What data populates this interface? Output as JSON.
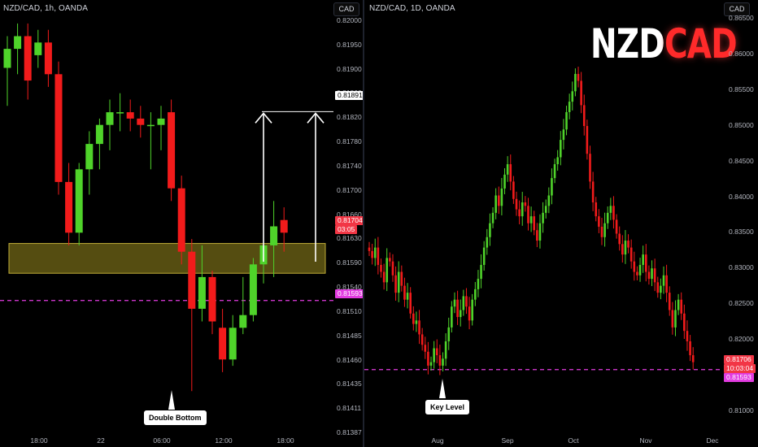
{
  "brand": {
    "part1": "NZD",
    "part2": "CAD"
  },
  "colors": {
    "up": "#4fd32a",
    "down": "#f21b1b",
    "zone_fill": "#5a5212",
    "zone_border": "#c9b53a",
    "level_line": "#e23be0",
    "price_tag_current": "#f23645",
    "price_tag_level": "#e23be0"
  },
  "left": {
    "symbol": "NZD/CAD, 1h, OANDA",
    "currency": "CAD",
    "price_ticks": [
      "0.82000",
      "0.81950",
      "0.81900",
      "0.81860",
      "0.81820",
      "0.81780",
      "0.81740",
      "0.81700",
      "0.81660",
      "0.81630",
      "0.81590",
      "0.81540",
      "0.81510",
      "0.81485",
      "0.81460",
      "0.81435",
      "0.81411",
      "0.81387"
    ],
    "time_ticks": [
      "18:00",
      "22",
      "06:00",
      "12:00",
      "18:00"
    ],
    "tag_target": "0.81891",
    "tag_current_price": "0.81704",
    "tag_current_time": "03:05",
    "tag_level": "0.81593",
    "callout": "Double Bottom"
  },
  "right": {
    "symbol": "NZD/CAD, 1D, OANDA",
    "currency": "CAD",
    "price_ticks": [
      "0.86500",
      "0.86000",
      "0.85500",
      "0.85000",
      "0.84500",
      "0.84000",
      "0.83500",
      "0.83000",
      "0.82500",
      "0.82000",
      "0.81500",
      "0.81000"
    ],
    "time_ticks": [
      "Aug",
      "Sep",
      "Oct",
      "Nov",
      "Dec"
    ],
    "tag_current_price": "0.81706",
    "tag_current_time": "10:03:04",
    "tag_level": "0.81593",
    "callout": "Key Level"
  },
  "chart_data": [
    {
      "type": "candlestick",
      "title": "NZD/CAD, 1h, OANDA",
      "ylim": [
        0.8138,
        0.8204
      ],
      "x_ticks": [
        "18:00",
        "22",
        "06:00",
        "12:00",
        "18:00"
      ],
      "annotations": [
        "Double Bottom",
        "demand zone 0.81640-0.81680",
        "level 0.81593",
        "target 0.81891"
      ],
      "candles": [
        {
          "o": 0.8196,
          "h": 0.8201,
          "l": 0.819,
          "c": 0.8199
        },
        {
          "o": 0.8199,
          "h": 0.8203,
          "l": 0.8195,
          "c": 0.8201
        },
        {
          "o": 0.8201,
          "h": 0.8203,
          "l": 0.8191,
          "c": 0.8194
        },
        {
          "o": 0.8198,
          "h": 0.8202,
          "l": 0.8196,
          "c": 0.82
        },
        {
          "o": 0.82,
          "h": 0.8202,
          "l": 0.8193,
          "c": 0.8195
        },
        {
          "o": 0.8195,
          "h": 0.8197,
          "l": 0.8176,
          "c": 0.8178
        },
        {
          "o": 0.8178,
          "h": 0.8181,
          "l": 0.8168,
          "c": 0.817
        },
        {
          "o": 0.817,
          "h": 0.8181,
          "l": 0.8168,
          "c": 0.818
        },
        {
          "o": 0.818,
          "h": 0.8186,
          "l": 0.8176,
          "c": 0.8184
        },
        {
          "o": 0.8184,
          "h": 0.8188,
          "l": 0.818,
          "c": 0.8187
        },
        {
          "o": 0.8187,
          "h": 0.8191,
          "l": 0.8183,
          "c": 0.8189
        },
        {
          "o": 0.8189,
          "h": 0.8192,
          "l": 0.8186,
          "c": 0.8189
        },
        {
          "o": 0.8189,
          "h": 0.8191,
          "l": 0.8186,
          "c": 0.8188
        },
        {
          "o": 0.8188,
          "h": 0.819,
          "l": 0.8185,
          "c": 0.8187
        },
        {
          "o": 0.8187,
          "h": 0.8189,
          "l": 0.818,
          "c": 0.8187
        },
        {
          "o": 0.8187,
          "h": 0.819,
          "l": 0.8183,
          "c": 0.8188
        },
        {
          "o": 0.8189,
          "h": 0.8191,
          "l": 0.8175,
          "c": 0.8177
        },
        {
          "o": 0.8177,
          "h": 0.8179,
          "l": 0.8165,
          "c": 0.8167
        },
        {
          "o": 0.8167,
          "h": 0.8169,
          "l": 0.8145,
          "c": 0.8158
        },
        {
          "o": 0.8158,
          "h": 0.8168,
          "l": 0.8156,
          "c": 0.8163
        },
        {
          "o": 0.8163,
          "h": 0.8164,
          "l": 0.8154,
          "c": 0.8156
        },
        {
          "o": 0.8155,
          "h": 0.8158,
          "l": 0.8148,
          "c": 0.815
        },
        {
          "o": 0.815,
          "h": 0.8157,
          "l": 0.8149,
          "c": 0.8155
        },
        {
          "o": 0.8155,
          "h": 0.8163,
          "l": 0.8154,
          "c": 0.8157
        },
        {
          "o": 0.8157,
          "h": 0.8166,
          "l": 0.8156,
          "c": 0.8165
        },
        {
          "o": 0.8165,
          "h": 0.8175,
          "l": 0.8162,
          "c": 0.8168
        },
        {
          "o": 0.8168,
          "h": 0.8175,
          "l": 0.8163,
          "c": 0.8171
        },
        {
          "o": 0.8172,
          "h": 0.8174,
          "l": 0.8167,
          "c": 0.817
        }
      ]
    },
    {
      "type": "candlestick",
      "title": "NZD/CAD, 1D, OANDA",
      "ylim": [
        0.8095,
        0.8665
      ],
      "x_ticks": [
        "Aug",
        "Sep",
        "Oct",
        "Nov",
        "Dec"
      ],
      "annotations": [
        "Key Level",
        "level 0.81593"
      ],
      "closes": [
        0.833,
        0.832,
        0.8335,
        0.831,
        0.83,
        0.8285,
        0.832,
        0.8315,
        0.8295,
        0.827,
        0.83,
        0.828,
        0.826,
        0.827,
        0.824,
        0.8225,
        0.823,
        0.821,
        0.8195,
        0.8185,
        0.8165,
        0.817,
        0.819,
        0.818,
        0.8165,
        0.8175,
        0.82,
        0.822,
        0.825,
        0.826,
        0.8235,
        0.8245,
        0.8265,
        0.825,
        0.823,
        0.826,
        0.8275,
        0.829,
        0.831,
        0.8335,
        0.835,
        0.837,
        0.8385,
        0.841,
        0.8395,
        0.842,
        0.844,
        0.8455,
        0.843,
        0.8405,
        0.839,
        0.838,
        0.84,
        0.8395,
        0.837,
        0.838,
        0.836,
        0.8345,
        0.837,
        0.8385,
        0.8395,
        0.841,
        0.8435,
        0.8455,
        0.8465,
        0.849,
        0.8505,
        0.853,
        0.8545,
        0.856,
        0.8585,
        0.8575,
        0.854,
        0.851,
        0.847,
        0.843,
        0.84,
        0.838,
        0.8365,
        0.835,
        0.837,
        0.8385,
        0.8395,
        0.8375,
        0.8355,
        0.834,
        0.8325,
        0.8345,
        0.8335,
        0.8315,
        0.83,
        0.8295,
        0.831,
        0.8325,
        0.83,
        0.829,
        0.8305,
        0.8285,
        0.827,
        0.828,
        0.8295,
        0.827,
        0.8245,
        0.822,
        0.8245,
        0.826,
        0.824,
        0.8215,
        0.82,
        0.818,
        0.817
      ]
    }
  ]
}
